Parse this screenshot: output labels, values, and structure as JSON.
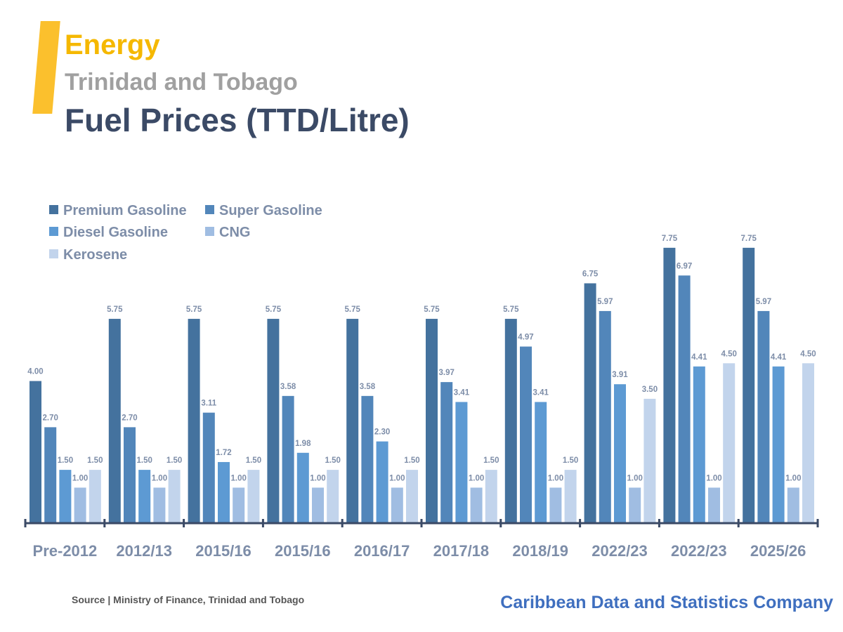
{
  "header": {
    "category": "Energy",
    "country": "Trinidad and Tobago",
    "title": "Fuel Prices (TTD/Litre)"
  },
  "footer": {
    "source": "Source | Ministry of Finance, Trinidad and Tobago",
    "brand": "Caribbean Data and Statistics Company"
  },
  "colors": {
    "accent": "#fbc02d",
    "category_text": "#f5b800",
    "country_text": "#a0a0a0",
    "title_text": "#3b4a66",
    "label_text": "#7d8da8",
    "brand_text": "#3f6fbf"
  },
  "chart_data": {
    "type": "bar",
    "categories": [
      "Pre-2012",
      "2012/13",
      "2015/16",
      "2015/16",
      "2016/17",
      "2017/18",
      "2018/19",
      "2022/23",
      "2022/23",
      "2025/26"
    ],
    "series": [
      {
        "name": "Premium Gasoline",
        "color": "#44729e",
        "values": [
          4.0,
          5.75,
          5.75,
          5.75,
          5.75,
          5.75,
          5.75,
          6.75,
          7.75,
          7.75
        ]
      },
      {
        "name": "Super Gasoline",
        "color": "#5286ba",
        "values": [
          2.7,
          2.7,
          3.11,
          3.58,
          3.58,
          3.97,
          4.97,
          5.97,
          6.97,
          5.97
        ]
      },
      {
        "name": "Diesel Gasoline",
        "color": "#5d9ad3",
        "values": [
          1.5,
          1.5,
          1.72,
          1.98,
          2.3,
          3.41,
          3.41,
          3.91,
          4.41,
          4.41
        ]
      },
      {
        "name": "CNG",
        "color": "#a0bde2",
        "values": [
          1.0,
          1.0,
          1.0,
          1.0,
          1.0,
          1.0,
          1.0,
          1.0,
          1.0,
          1.0
        ]
      },
      {
        "name": "Kerosene",
        "color": "#c2d4ec",
        "values": [
          1.5,
          1.5,
          1.5,
          1.5,
          1.5,
          1.5,
          1.5,
          3.5,
          4.5,
          4.5
        ]
      }
    ],
    "value_format": "0.00",
    "ylim": [
      0,
      8
    ],
    "grid": false,
    "legend": "top-left"
  }
}
